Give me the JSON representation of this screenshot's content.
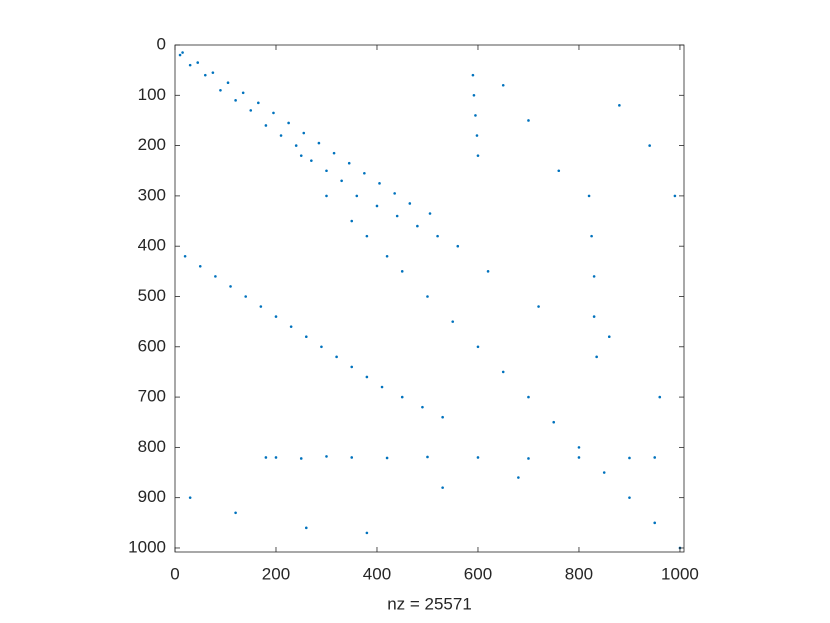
{
  "chart_data": {
    "type": "spy",
    "xlabel": "nz = 25571",
    "color": "#0072bd",
    "xlim": [
      0,
      1008
    ],
    "ylim": [
      0,
      1008
    ],
    "y_reversed": true,
    "xticks": [
      0,
      200,
      400,
      600,
      800,
      1000
    ],
    "yticks": [
      0,
      100,
      200,
      300,
      400,
      500,
      600,
      700,
      800,
      900,
      1000
    ],
    "x": [
      250,
      300,
      350,
      380,
      420,
      450,
      500,
      550,
      600,
      650,
      700,
      750,
      800,
      850,
      900,
      950,
      1000,
      10,
      30,
      60,
      90,
      120,
      150,
      180,
      210,
      240,
      270,
      300,
      330,
      360,
      400,
      440,
      480,
      520,
      560,
      20,
      50,
      80,
      110,
      140,
      170,
      200,
      230,
      260,
      290,
      320,
      350,
      380,
      410,
      450,
      490,
      530,
      15,
      45,
      75,
      105,
      135,
      165,
      195,
      225,
      255,
      285,
      315,
      345,
      375,
      405,
      435,
      465,
      505,
      180,
      200,
      250,
      300,
      350,
      420,
      500,
      600,
      700,
      800,
      900,
      950,
      590,
      592,
      595,
      598,
      600,
      820,
      825,
      830,
      830,
      835,
      650,
      700,
      760,
      880,
      940,
      990,
      620,
      720,
      860,
      960,
      30,
      120,
      260,
      380,
      530,
      680
    ],
    "y": [
      220,
      300,
      350,
      380,
      420,
      450,
      500,
      550,
      600,
      650,
      700,
      750,
      800,
      850,
      900,
      950,
      1000,
      20,
      40,
      60,
      90,
      110,
      130,
      160,
      180,
      200,
      230,
      250,
      270,
      300,
      320,
      340,
      360,
      380,
      400,
      420,
      440,
      460,
      480,
      500,
      520,
      540,
      560,
      580,
      600,
      620,
      640,
      660,
      680,
      700,
      720,
      740,
      15,
      35,
      55,
      75,
      95,
      115,
      135,
      155,
      175,
      195,
      215,
      235,
      255,
      275,
      295,
      315,
      335,
      820,
      820,
      822,
      818,
      820,
      821,
      819,
      820,
      822,
      820,
      821,
      820,
      60,
      100,
      140,
      180,
      220,
      300,
      380,
      460,
      540,
      620,
      80,
      150,
      250,
      120,
      200,
      300,
      450,
      520,
      580,
      700,
      900,
      930,
      960,
      970,
      880,
      860
    ]
  }
}
